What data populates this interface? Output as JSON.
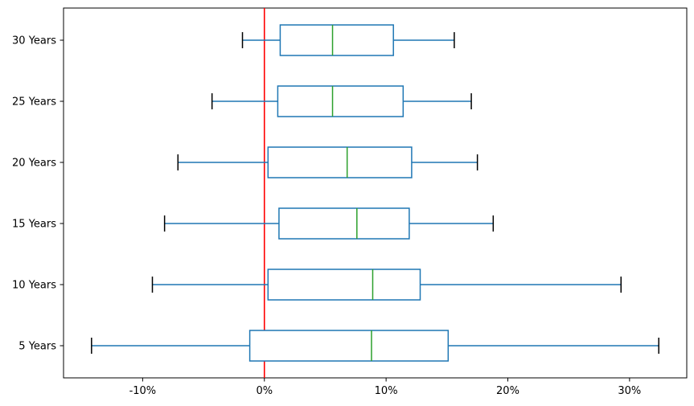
{
  "figure": {
    "background": "#ffffff"
  },
  "chart_data": {
    "type": "boxplot",
    "orientation": "horizontal",
    "title": "",
    "xlabel": "",
    "ylabel": "",
    "categories": [
      "30 Years",
      "25 Years",
      "20 Years",
      "15 Years",
      "10 Years",
      "5 Years"
    ],
    "value_unit": "percent",
    "series": [
      {
        "label": "30 Years",
        "whisker_low": -1.8,
        "q1": 1.3,
        "median": 5.6,
        "q3": 10.6,
        "whisker_high": 15.6
      },
      {
        "label": "25 Years",
        "whisker_low": -4.3,
        "q1": 1.1,
        "median": 5.6,
        "q3": 11.4,
        "whisker_high": 17.0
      },
      {
        "label": "20 Years",
        "whisker_low": -7.1,
        "q1": 0.3,
        "median": 6.8,
        "q3": 12.1,
        "whisker_high": 17.5
      },
      {
        "label": "15 Years",
        "whisker_low": -8.2,
        "q1": 1.2,
        "median": 7.6,
        "q3": 11.9,
        "whisker_high": 18.8
      },
      {
        "label": "10 Years",
        "whisker_low": -9.2,
        "q1": 0.3,
        "median": 8.9,
        "q3": 12.8,
        "whisker_high": 29.3
      },
      {
        "label": "5 Years",
        "whisker_low": -14.2,
        "q1": -1.2,
        "median": 8.8,
        "q3": 15.1,
        "whisker_high": 32.4
      }
    ],
    "x_ticks": [
      {
        "value": -10,
        "label": "-10%"
      },
      {
        "value": 0,
        "label": "0%"
      },
      {
        "value": 10,
        "label": "10%"
      },
      {
        "value": 20,
        "label": "20%"
      },
      {
        "value": 30,
        "label": "30%"
      }
    ],
    "xlim": [
      -16.5,
      34.7
    ],
    "reference_line": {
      "value": 0
    },
    "grid": false,
    "legend": false,
    "colors": {
      "box": "#1f77b4",
      "whisker": "#1f77b4",
      "median": "#2ca02c",
      "cap": "#000000",
      "reference": "#ff0000",
      "frame": "#000000",
      "tick_label": "#000000"
    }
  }
}
